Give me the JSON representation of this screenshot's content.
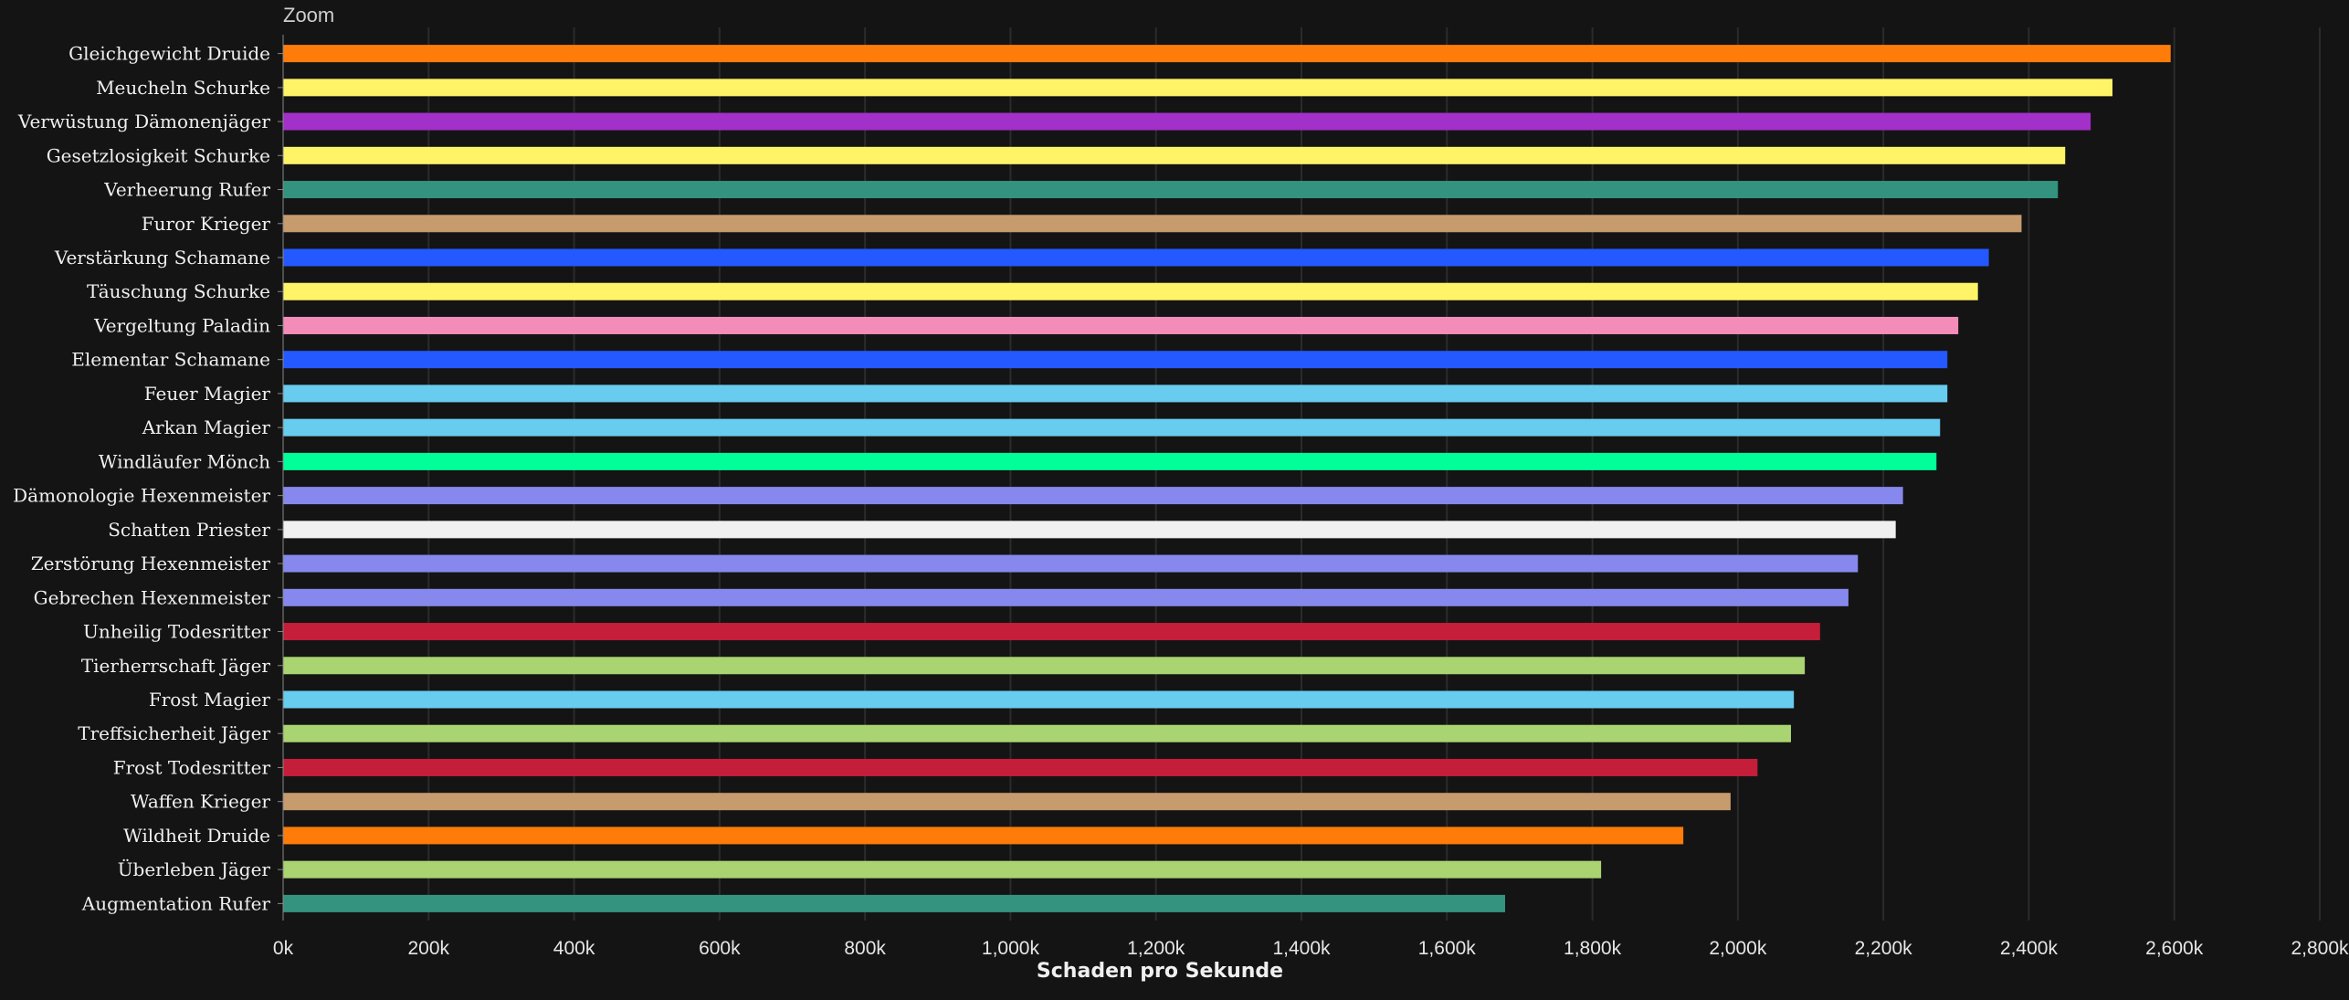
{
  "zoom_label": "Zoom",
  "chart_data": {
    "type": "bar",
    "orientation": "horizontal",
    "title": "",
    "xlabel": "Schaden pro Sekunde",
    "ylabel": "",
    "xlim": [
      0,
      2800000
    ],
    "x_ticks": [
      0,
      200000,
      400000,
      600000,
      800000,
      1000000,
      1200000,
      1400000,
      1600000,
      1800000,
      2000000,
      2200000,
      2400000,
      2600000,
      2800000
    ],
    "x_tick_labels": [
      "0k",
      "200k",
      "400k",
      "600k",
      "800k",
      "1,000k",
      "1,200k",
      "1,400k",
      "1,600k",
      "1,800k",
      "2,000k",
      "2,200k",
      "2,400k",
      "2,600k",
      "2,800k"
    ],
    "grid": true,
    "legend": "none",
    "categories": [
      "Gleichgewicht Druide",
      "Meucheln Schurke",
      "Verwüstung Dämonenjäger",
      "Gesetzlosigkeit Schurke",
      "Verheerung Rufer",
      "Furor Krieger",
      "Verstärkung Schamane",
      "Täuschung Schurke",
      "Vergeltung Paladin",
      "Elementar Schamane",
      "Feuer Magier",
      "Arkan Magier",
      "Windläufer Mönch",
      "Dämonologie Hexenmeister",
      "Schatten Priester",
      "Zerstörung Hexenmeister",
      "Gebrechen Hexenmeister",
      "Unheilig Todesritter",
      "Tierherrschaft Jäger",
      "Frost Magier",
      "Treffsicherheit Jäger",
      "Frost Todesritter",
      "Waffen Krieger",
      "Wildheit Druide",
      "Überleben Jäger",
      "Augmentation Rufer"
    ],
    "values": [
      2595000,
      2515000,
      2485000,
      2450000,
      2440000,
      2390000,
      2345000,
      2330000,
      2303000,
      2288000,
      2288000,
      2278000,
      2273000,
      2227000,
      2217000,
      2165000,
      2152000,
      2113000,
      2092000,
      2077000,
      2073000,
      2027000,
      1990000,
      1925000,
      1812000,
      1680000
    ],
    "colors": [
      "#ff7c0a",
      "#fff468",
      "#a330c9",
      "#fff468",
      "#33937f",
      "#c69b6d",
      "#2459ff",
      "#fff468",
      "#f48cba",
      "#2459ff",
      "#68ccef",
      "#68ccef",
      "#00ff98",
      "#8788ee",
      "#f0f0f0",
      "#8788ee",
      "#8788ee",
      "#c41e3a",
      "#aad372",
      "#68ccef",
      "#aad372",
      "#c41e3a",
      "#c69b6d",
      "#ff7c0a",
      "#aad372",
      "#33937f"
    ]
  }
}
